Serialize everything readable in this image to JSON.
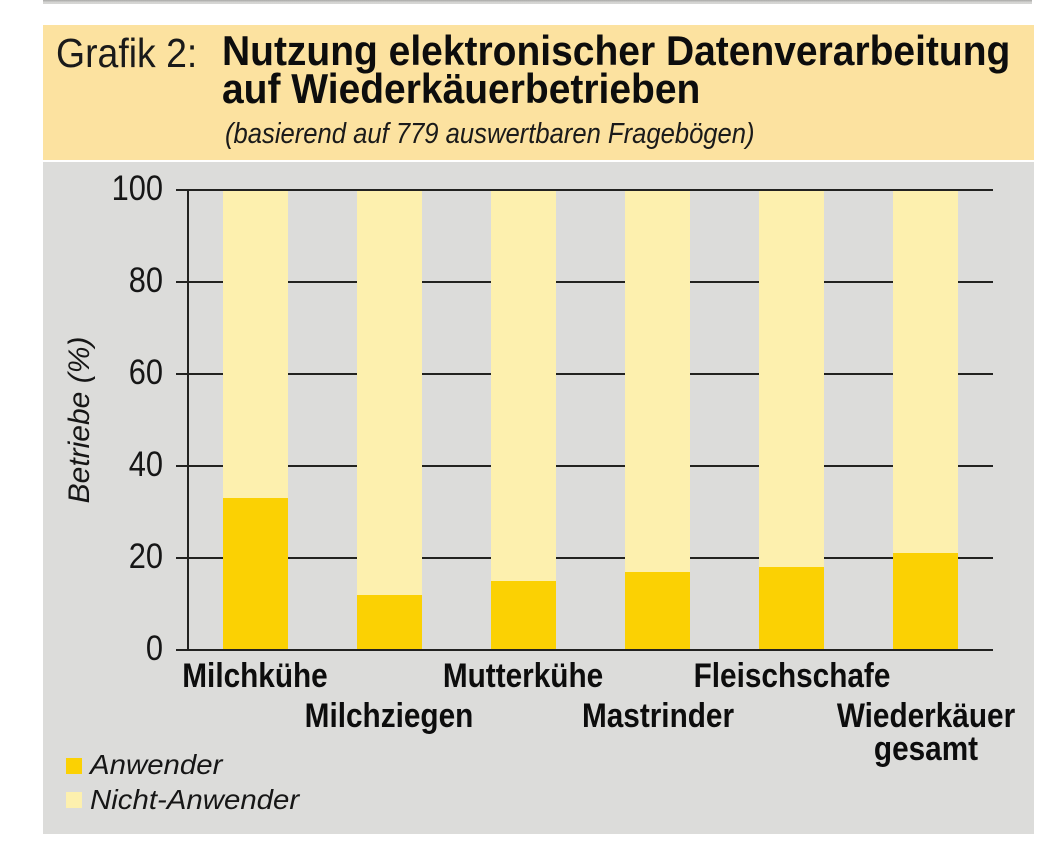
{
  "header": {
    "label": "Grafik 2:",
    "title_line1": "Nutzung elektronischer Datenverarbeitung",
    "title_line2": "auf Wiederkäuerbetrieben",
    "subtitle": "(basierend auf 779 auswertbaren Fragebögen)"
  },
  "colors": {
    "header_bg": "#fce2a0",
    "panel_bg": "#dcdcda",
    "anwender": "#fbd103",
    "nicht_anwender": "#fdf0ae",
    "axis_line": "#222220",
    "top_strip": "#c6c6c4"
  },
  "chart_data": {
    "type": "bar",
    "stacked": true,
    "title": "Nutzung elektronischer Datenverarbeitung auf Wiederkäuerbetrieben",
    "subtitle": "(basierend auf 779 auswertbaren Fragebögen)",
    "categories": [
      "Milchkühe",
      "Milchziegen",
      "Mutterkühe",
      "Mastrinder",
      "Fleischschafe",
      "Wiederkäuer gesamt"
    ],
    "category_label_lines": [
      [
        "Milchkühe"
      ],
      [
        "Milchziegen"
      ],
      [
        "Mutterkühe"
      ],
      [
        "Mastrinder"
      ],
      [
        "Fleischschafe"
      ],
      [
        "Wiederkäuer",
        "gesamt"
      ]
    ],
    "series": [
      {
        "name": "Anwender",
        "values": [
          33,
          12,
          15,
          17,
          18,
          21
        ],
        "color": "#fbd103"
      },
      {
        "name": "Nicht-Anwender",
        "values": [
          67,
          88,
          85,
          83,
          82,
          79
        ],
        "color": "#fdf0ae"
      }
    ],
    "xlabel": "",
    "ylabel": "Betriebe (%)",
    "ylim": [
      0,
      100
    ],
    "yticks": [
      0,
      20,
      40,
      60,
      80,
      100
    ],
    "grid": true,
    "legend_position": "bottom-left",
    "legend": [
      "Anwender",
      "Nicht-Anwender"
    ]
  }
}
